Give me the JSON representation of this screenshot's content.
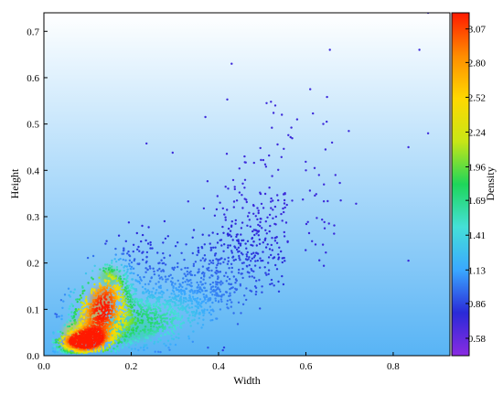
{
  "chart_data": {
    "type": "scatter",
    "title": "",
    "xlabel": "Width",
    "ylabel": "Height",
    "colorbar_label": "Density",
    "xlim": [
      0.0,
      0.93
    ],
    "ylim": [
      0.0,
      0.74
    ],
    "x_ticks": [
      0.0,
      0.2,
      0.4,
      0.6,
      0.8
    ],
    "y_ticks": [
      0.0,
      0.1,
      0.2,
      0.3,
      0.4,
      0.5,
      0.6,
      0.7
    ],
    "x_tick_labels": [
      "0.0",
      "0.2",
      "0.4",
      "0.6",
      "0.8"
    ],
    "y_tick_labels": [
      "0.0",
      "0.1",
      "0.2",
      "0.3",
      "0.4",
      "0.5",
      "0.6",
      "0.7"
    ],
    "colorbar_range": [
      0.44,
      3.2
    ],
    "colorbar_ticks": [
      0.58,
      0.86,
      1.13,
      1.41,
      1.69,
      1.96,
      2.24,
      2.52,
      2.8,
      3.07
    ],
    "colorbar_tick_labels": [
      "0.58",
      "0.86",
      "1.13",
      "1.41",
      "1.69",
      "1.96",
      "2.24",
      "2.52",
      "2.80",
      "3.07"
    ],
    "colormap": [
      "#8a2be2",
      "#2a2ad8",
      "#3aa8ff",
      "#45e0d8",
      "#1ed65a",
      "#c8e616",
      "#ffd800",
      "#ff8c00",
      "#ff1a00"
    ],
    "background_gradient": [
      "#ffffff",
      "#58b4f5"
    ],
    "grid": false,
    "outlier_points": [
      {
        "x": 0.43,
        "y": 0.63
      },
      {
        "x": 0.42,
        "y": 0.553
      },
      {
        "x": 0.37,
        "y": 0.515
      },
      {
        "x": 0.655,
        "y": 0.66
      },
      {
        "x": 0.88,
        "y": 0.74
      },
      {
        "x": 0.86,
        "y": 0.66
      },
      {
        "x": 0.61,
        "y": 0.575
      },
      {
        "x": 0.88,
        "y": 0.48
      },
      {
        "x": 0.835,
        "y": 0.45
      },
      {
        "x": 0.64,
        "y": 0.5
      },
      {
        "x": 0.66,
        "y": 0.46
      },
      {
        "x": 0.645,
        "y": 0.445
      },
      {
        "x": 0.68,
        "y": 0.335
      },
      {
        "x": 0.835,
        "y": 0.205
      },
      {
        "x": 0.62,
        "y": 0.405
      },
      {
        "x": 0.51,
        "y": 0.545
      },
      {
        "x": 0.52,
        "y": 0.548
      },
      {
        "x": 0.53,
        "y": 0.54
      },
      {
        "x": 0.235,
        "y": 0.458
      },
      {
        "x": 0.295,
        "y": 0.438
      },
      {
        "x": 0.545,
        "y": 0.52
      },
      {
        "x": 0.58,
        "y": 0.51
      },
      {
        "x": 0.6,
        "y": 0.4
      },
      {
        "x": 0.63,
        "y": 0.39
      }
    ]
  }
}
